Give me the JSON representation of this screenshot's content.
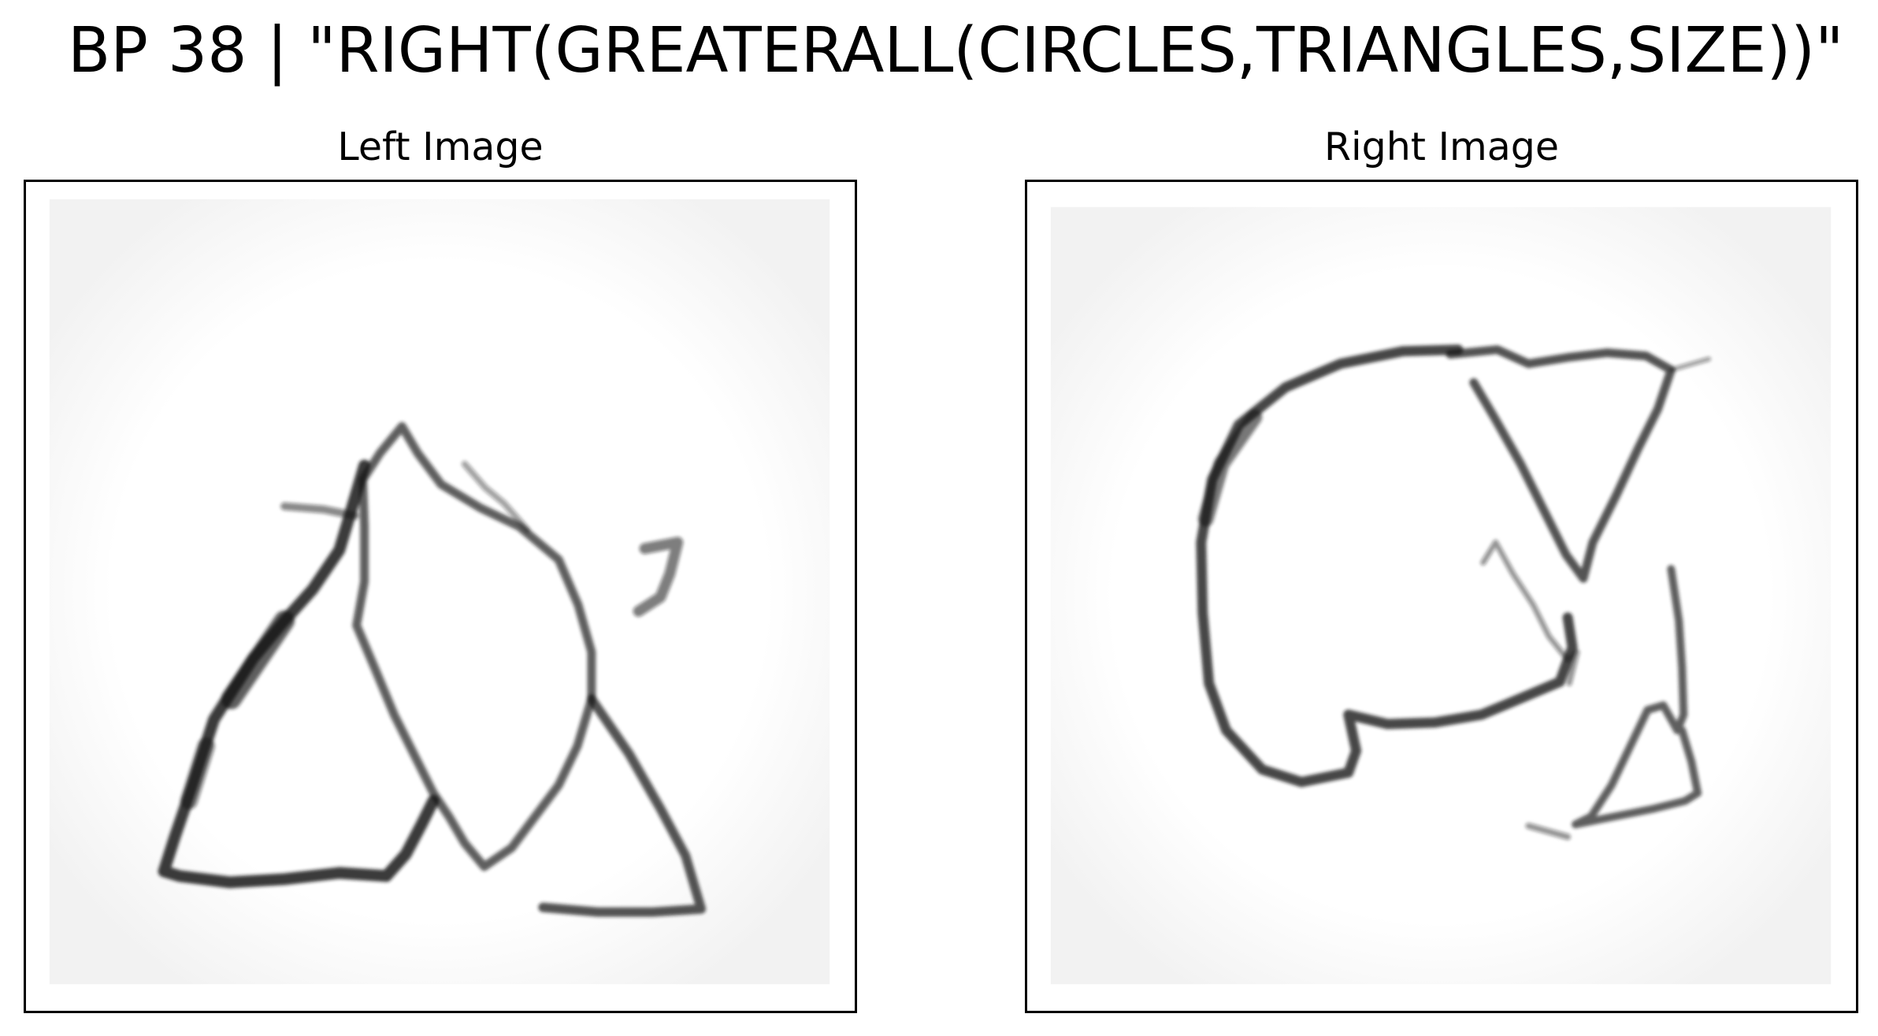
{
  "figure": {
    "title": "BP 38 | \"RIGHT(GREATERALL(CIRCLES,TRIANGLES,SIZE))\""
  },
  "panels": [
    {
      "title": "Left Image",
      "contents": [
        "triangle",
        "triangle",
        "circle"
      ]
    },
    {
      "title": "Right Image",
      "contents": [
        "circle",
        "triangle",
        "triangle"
      ]
    }
  ],
  "colors": {
    "background": "#ffffff",
    "image_background": "#fafafa",
    "stroke": "#1a1a1a",
    "frame": "#000000"
  }
}
